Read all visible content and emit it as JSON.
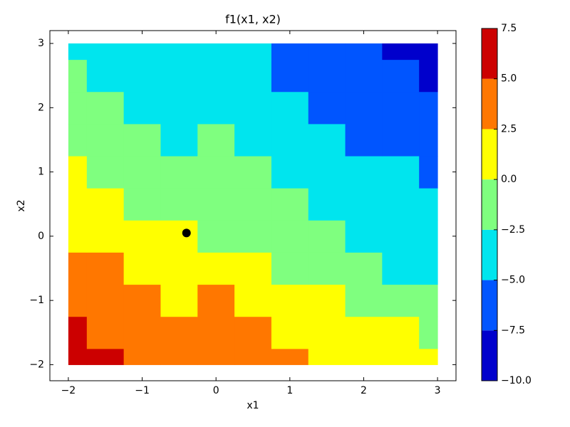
{
  "chart_data": {
    "type": "contour",
    "title": "f1(x1, x2)",
    "xlabel": "x1",
    "ylabel": "x2",
    "xlim": [
      -2.25,
      3.25
    ],
    "ylim": [
      -2.25,
      3.2
    ],
    "xticks": [
      {
        "value": -2,
        "label": "−2"
      },
      {
        "value": -1,
        "label": "−1"
      },
      0,
      1,
      2,
      3
    ],
    "yticks": [
      {
        "value": -2,
        "label": "−2"
      },
      {
        "value": -1,
        "label": "−1"
      },
      0,
      1,
      2,
      3
    ],
    "x": [
      -2,
      -1.5,
      -1,
      -0.5,
      0,
      0.5,
      1,
      1.5,
      2,
      2.5,
      3
    ],
    "y": [
      -2,
      -1.5,
      -1,
      -0.5,
      0,
      0.5,
      1,
      1.5,
      2,
      2.5,
      3
    ],
    "z": [
      [
        6.25,
        6.25,
        3.75,
        3.75,
        3.75,
        3.75,
        3.75,
        1.25,
        1.25,
        1.25,
        1.25
      ],
      [
        6.25,
        3.75,
        3.75,
        3.75,
        3.75,
        3.75,
        1.25,
        1.25,
        1.25,
        1.25,
        -1.25
      ],
      [
        3.75,
        3.75,
        3.75,
        1.25,
        3.75,
        1.25,
        1.25,
        1.25,
        -1.25,
        -1.25,
        -1.25
      ],
      [
        3.75,
        3.75,
        1.25,
        1.25,
        1.25,
        1.25,
        -1.25,
        -1.25,
        -1.25,
        -3.75,
        -3.75
      ],
      [
        1.25,
        1.25,
        1.25,
        1.25,
        -1.25,
        -1.25,
        -1.25,
        -1.25,
        -3.75,
        -3.75,
        -3.75
      ],
      [
        1.25,
        1.25,
        -1.25,
        -1.25,
        -1.25,
        -1.25,
        -1.25,
        -3.75,
        -3.75,
        -3.75,
        -3.75
      ],
      [
        1.25,
        -1.25,
        -1.25,
        -1.25,
        -1.25,
        -1.25,
        -3.75,
        -3.75,
        -3.75,
        -3.75,
        -6.25
      ],
      [
        -1.25,
        -1.25,
        -1.25,
        -3.75,
        -1.25,
        -3.75,
        -3.75,
        -3.75,
        -6.25,
        -6.25,
        -6.25
      ],
      [
        -1.25,
        -1.25,
        -3.75,
        -3.75,
        -3.75,
        -3.75,
        -3.75,
        -6.25,
        -6.25,
        -6.25,
        -6.25
      ],
      [
        -1.25,
        -3.75,
        -3.75,
        -3.75,
        -3.75,
        -3.75,
        -6.25,
        -6.25,
        -6.25,
        -6.25,
        -8.75
      ],
      [
        -3.75,
        -3.75,
        -3.75,
        -3.75,
        -3.75,
        -3.75,
        -6.25,
        -6.25,
        -6.25,
        -8.75,
        -8.75
      ]
    ],
    "levels": [
      -10,
      -7.5,
      -5,
      -2.5,
      0,
      2.5,
      5,
      7.5
    ],
    "level_colors": [
      "#0000cc",
      "#0055ff",
      "#00e5ee",
      "#7fff7f",
      "#ffff00",
      "#ff7700",
      "#cc0000"
    ],
    "colorbar_ticks": [
      {
        "value": -10,
        "label": "−10.0"
      },
      {
        "value": -7.5,
        "label": "−7.5"
      },
      {
        "value": -5,
        "label": "−5.0"
      },
      {
        "value": -2.5,
        "label": "−2.5"
      },
      {
        "value": 0,
        "label": "0.0"
      },
      {
        "value": 2.5,
        "label": "2.5"
      },
      {
        "value": 5,
        "label": "5.0"
      },
      {
        "value": 7.5,
        "label": "7.5"
      }
    ],
    "marker": {
      "x": [
        -0.4
      ],
      "y": [
        0.05
      ],
      "color": "#000000"
    }
  }
}
